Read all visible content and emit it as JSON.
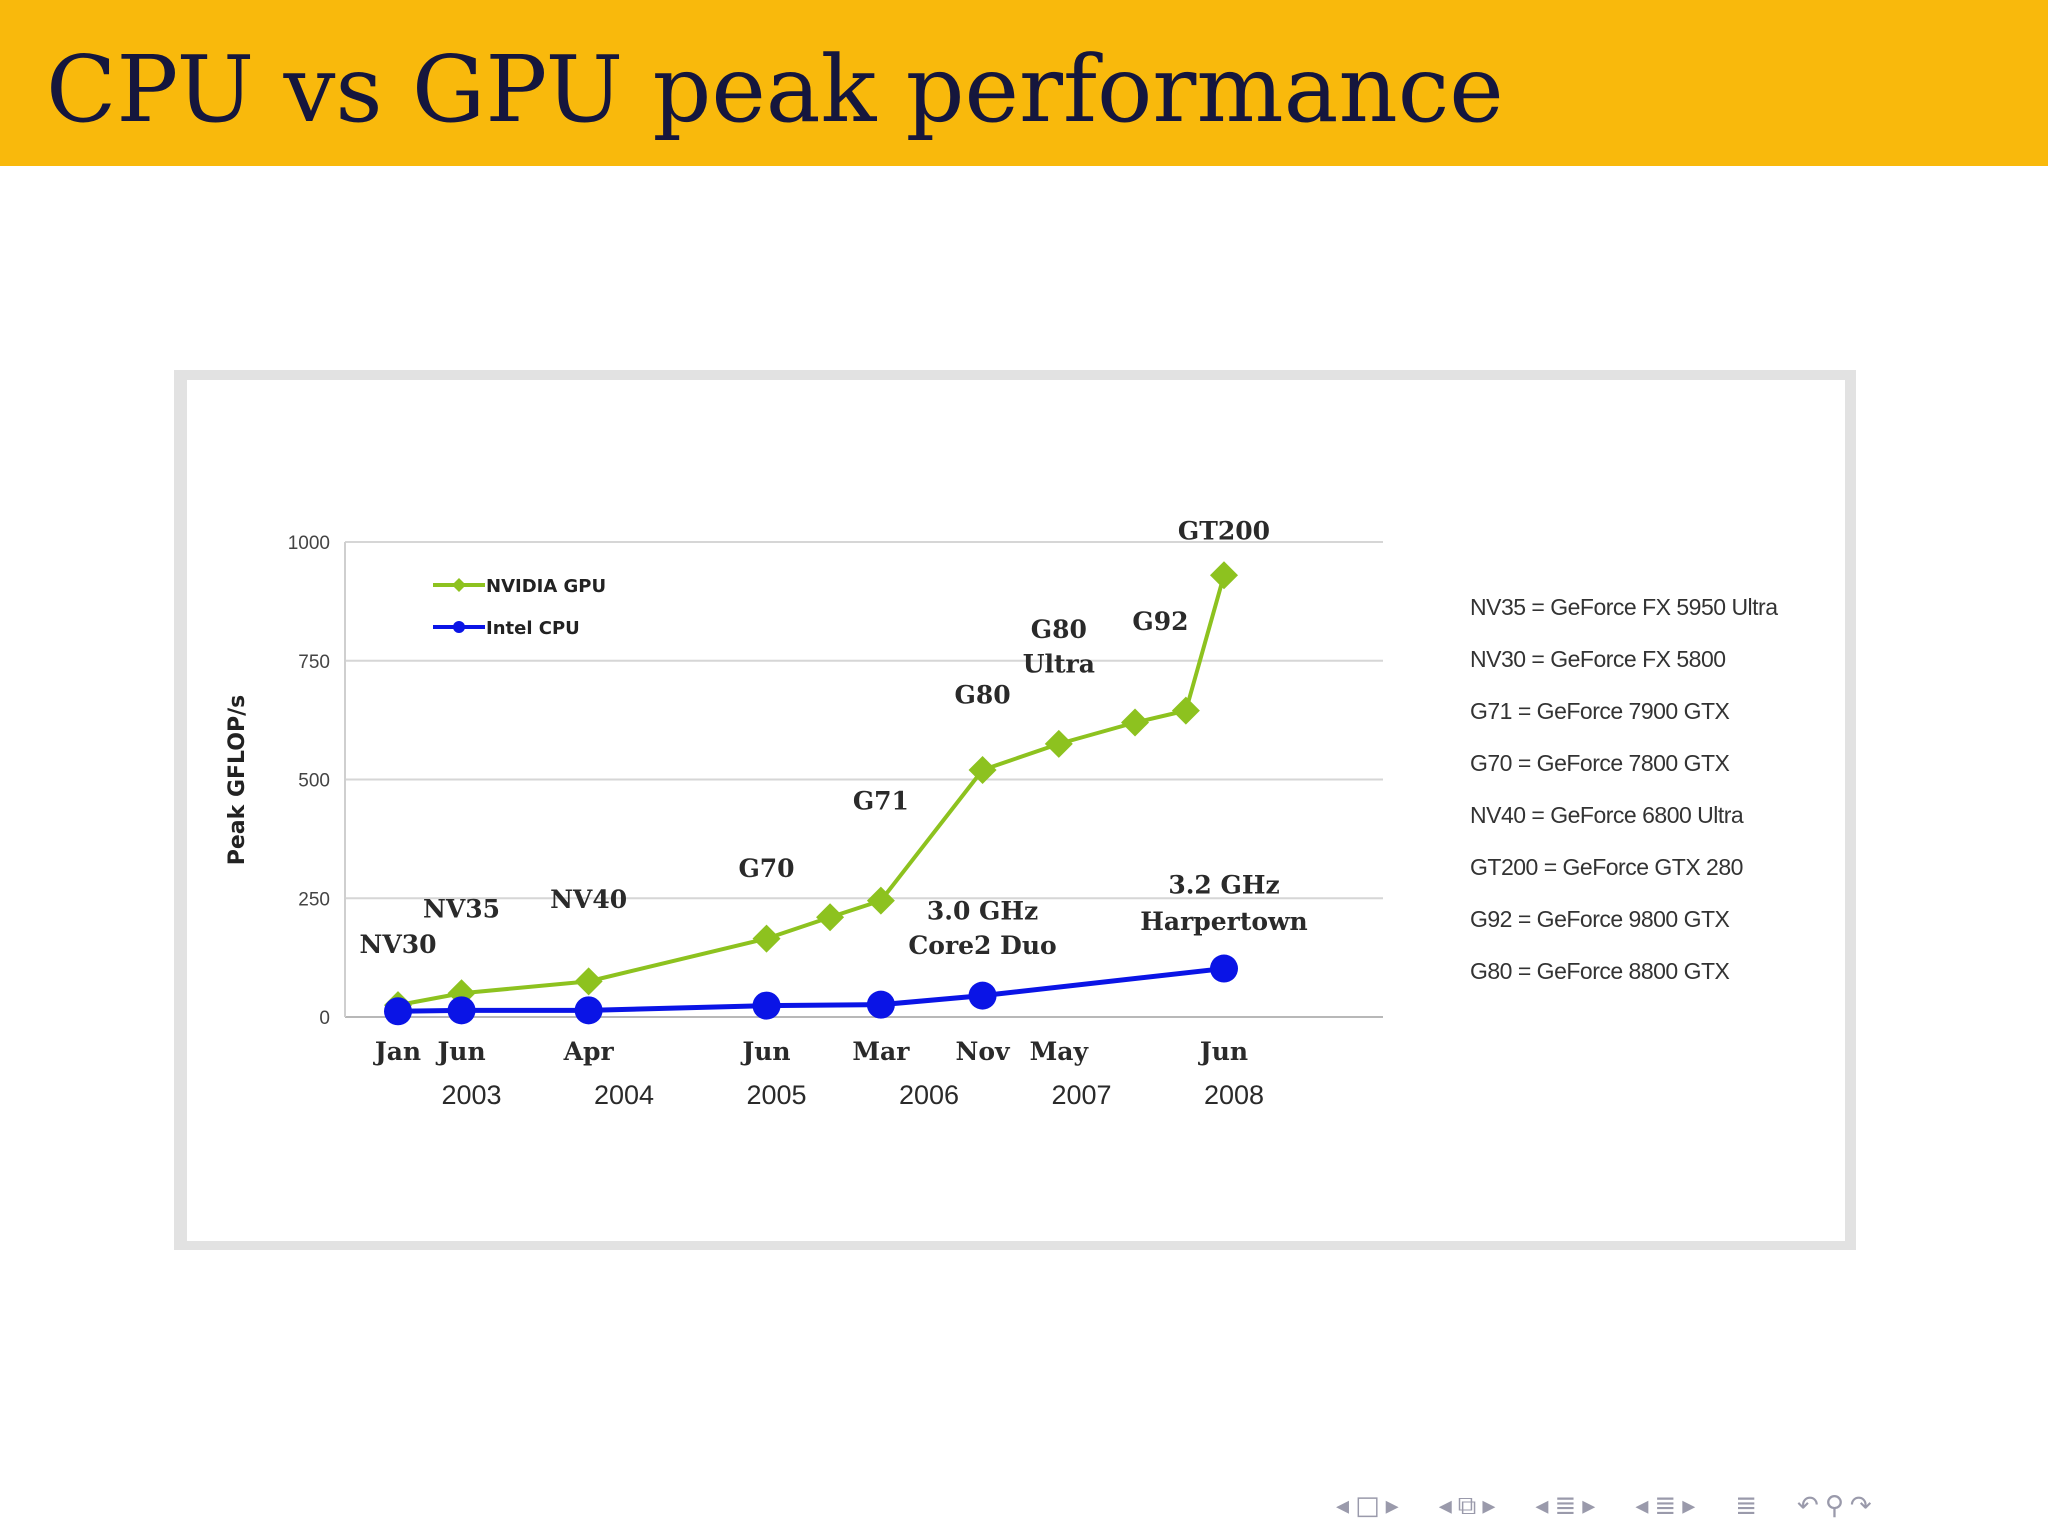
{
  "slide": {
    "title": "CPU vs GPU peak performance"
  },
  "chart_data": {
    "type": "line",
    "ylabel": "Peak GFLOP/s",
    "ylim": [
      0,
      1000
    ],
    "yticks": [
      0,
      250,
      500,
      750,
      1000
    ],
    "grid": true,
    "legend_position": "top-left",
    "x_tick_labels": {
      "months": [
        {
          "label": "Jan",
          "date": "2003-01"
        },
        {
          "label": "Jun",
          "date": "2003-06"
        },
        {
          "label": "Apr",
          "date": "2004-04"
        },
        {
          "label": "Jun",
          "date": "2005-06"
        },
        {
          "label": "Mar",
          "date": "2006-03"
        },
        {
          "label": "Nov",
          "date": "2006-11"
        },
        {
          "label": "May",
          "date": "2007-05"
        },
        {
          "label": "Jun",
          "date": "2008-06"
        }
      ],
      "years": [
        {
          "label": "2003",
          "date": "2003-06"
        },
        {
          "label": "2004",
          "date": "2004-06"
        },
        {
          "label": "2005",
          "date": "2005-06"
        },
        {
          "label": "2006",
          "date": "2006-06"
        },
        {
          "label": "2007",
          "date": "2007-06"
        },
        {
          "label": "2008",
          "date": "2008-06"
        }
      ]
    },
    "series": [
      {
        "name": "NVIDIA GPU",
        "color": "#8dc21f",
        "marker": "diamond",
        "points": [
          {
            "x": "2003-01",
            "y": 25
          },
          {
            "x": "2003-06",
            "y": 50
          },
          {
            "x": "2004-04",
            "y": 75
          },
          {
            "x": "2005-06",
            "y": 165
          },
          {
            "x": "2005-11",
            "y": 210
          },
          {
            "x": "2006-03",
            "y": 245
          },
          {
            "x": "2006-11",
            "y": 520
          },
          {
            "x": "2007-05",
            "y": 575
          },
          {
            "x": "2007-11",
            "y": 620
          },
          {
            "x": "2008-03",
            "y": 645
          },
          {
            "x": "2008-06",
            "y": 930
          }
        ]
      },
      {
        "name": "Intel CPU",
        "color": "#0a14e6",
        "marker": "circle",
        "points": [
          {
            "x": "2003-01",
            "y": 12
          },
          {
            "x": "2003-06",
            "y": 14
          },
          {
            "x": "2004-04",
            "y": 14
          },
          {
            "x": "2005-06",
            "y": 24
          },
          {
            "x": "2006-03",
            "y": 26
          },
          {
            "x": "2006-11",
            "y": 45
          },
          {
            "x": "2008-06",
            "y": 102
          }
        ]
      }
    ],
    "annotations": [
      {
        "text": "GT200",
        "x": "2008-06",
        "y": 1005
      },
      {
        "text": "G92",
        "x": "2008-01",
        "y": 815
      },
      {
        "text": "G80",
        "x": "2007-05",
        "y": 798
      },
      {
        "text": "Ultra",
        "x": "2007-05",
        "y": 725
      },
      {
        "text": "G80",
        "x": "2006-11",
        "y": 660
      },
      {
        "text": "G71",
        "x": "2006-03",
        "y": 437
      },
      {
        "text": "G70",
        "x": "2005-06",
        "y": 295
      },
      {
        "text": "NV40",
        "x": "2004-04",
        "y": 230
      },
      {
        "text": "NV35",
        "x": "2003-06",
        "y": 210
      },
      {
        "text": "NV30",
        "x": "2003-01",
        "y": 135
      },
      {
        "text": "3.0 GHz",
        "x": "2006-11",
        "y": 205
      },
      {
        "text": "Core2 Duo",
        "x": "2006-11",
        "y": 133
      },
      {
        "text": "3.2 GHz",
        "x": "2008-06",
        "y": 260
      },
      {
        "text": "Harpertown",
        "x": "2008-06",
        "y": 183
      }
    ],
    "glossary": [
      "NV35 = GeForce FX 5950 Ultra",
      "NV30 = GeForce FX 5800",
      "G71 = GeForce 7900 GTX",
      "G70 = GeForce 7800 GTX",
      "NV40 = GeForce 6800 Ultra",
      "GT200 = GeForce GTX 280",
      "G92 = GeForce 9800 GTX",
      "G80 = GeForce 8800 GTX"
    ]
  },
  "nav": {
    "icons": [
      "arrow-left-icon",
      "frame-icon",
      "arrow-right-icon",
      "arrow-left-icon",
      "subsection-icon",
      "arrow-right-icon",
      "arrow-left-icon",
      "section-icon",
      "arrow-right-icon",
      "arrow-left-icon",
      "outline-icon",
      "arrow-right-icon",
      "outline-icon",
      "undo-icon",
      "search-icon",
      "redo-icon"
    ]
  }
}
